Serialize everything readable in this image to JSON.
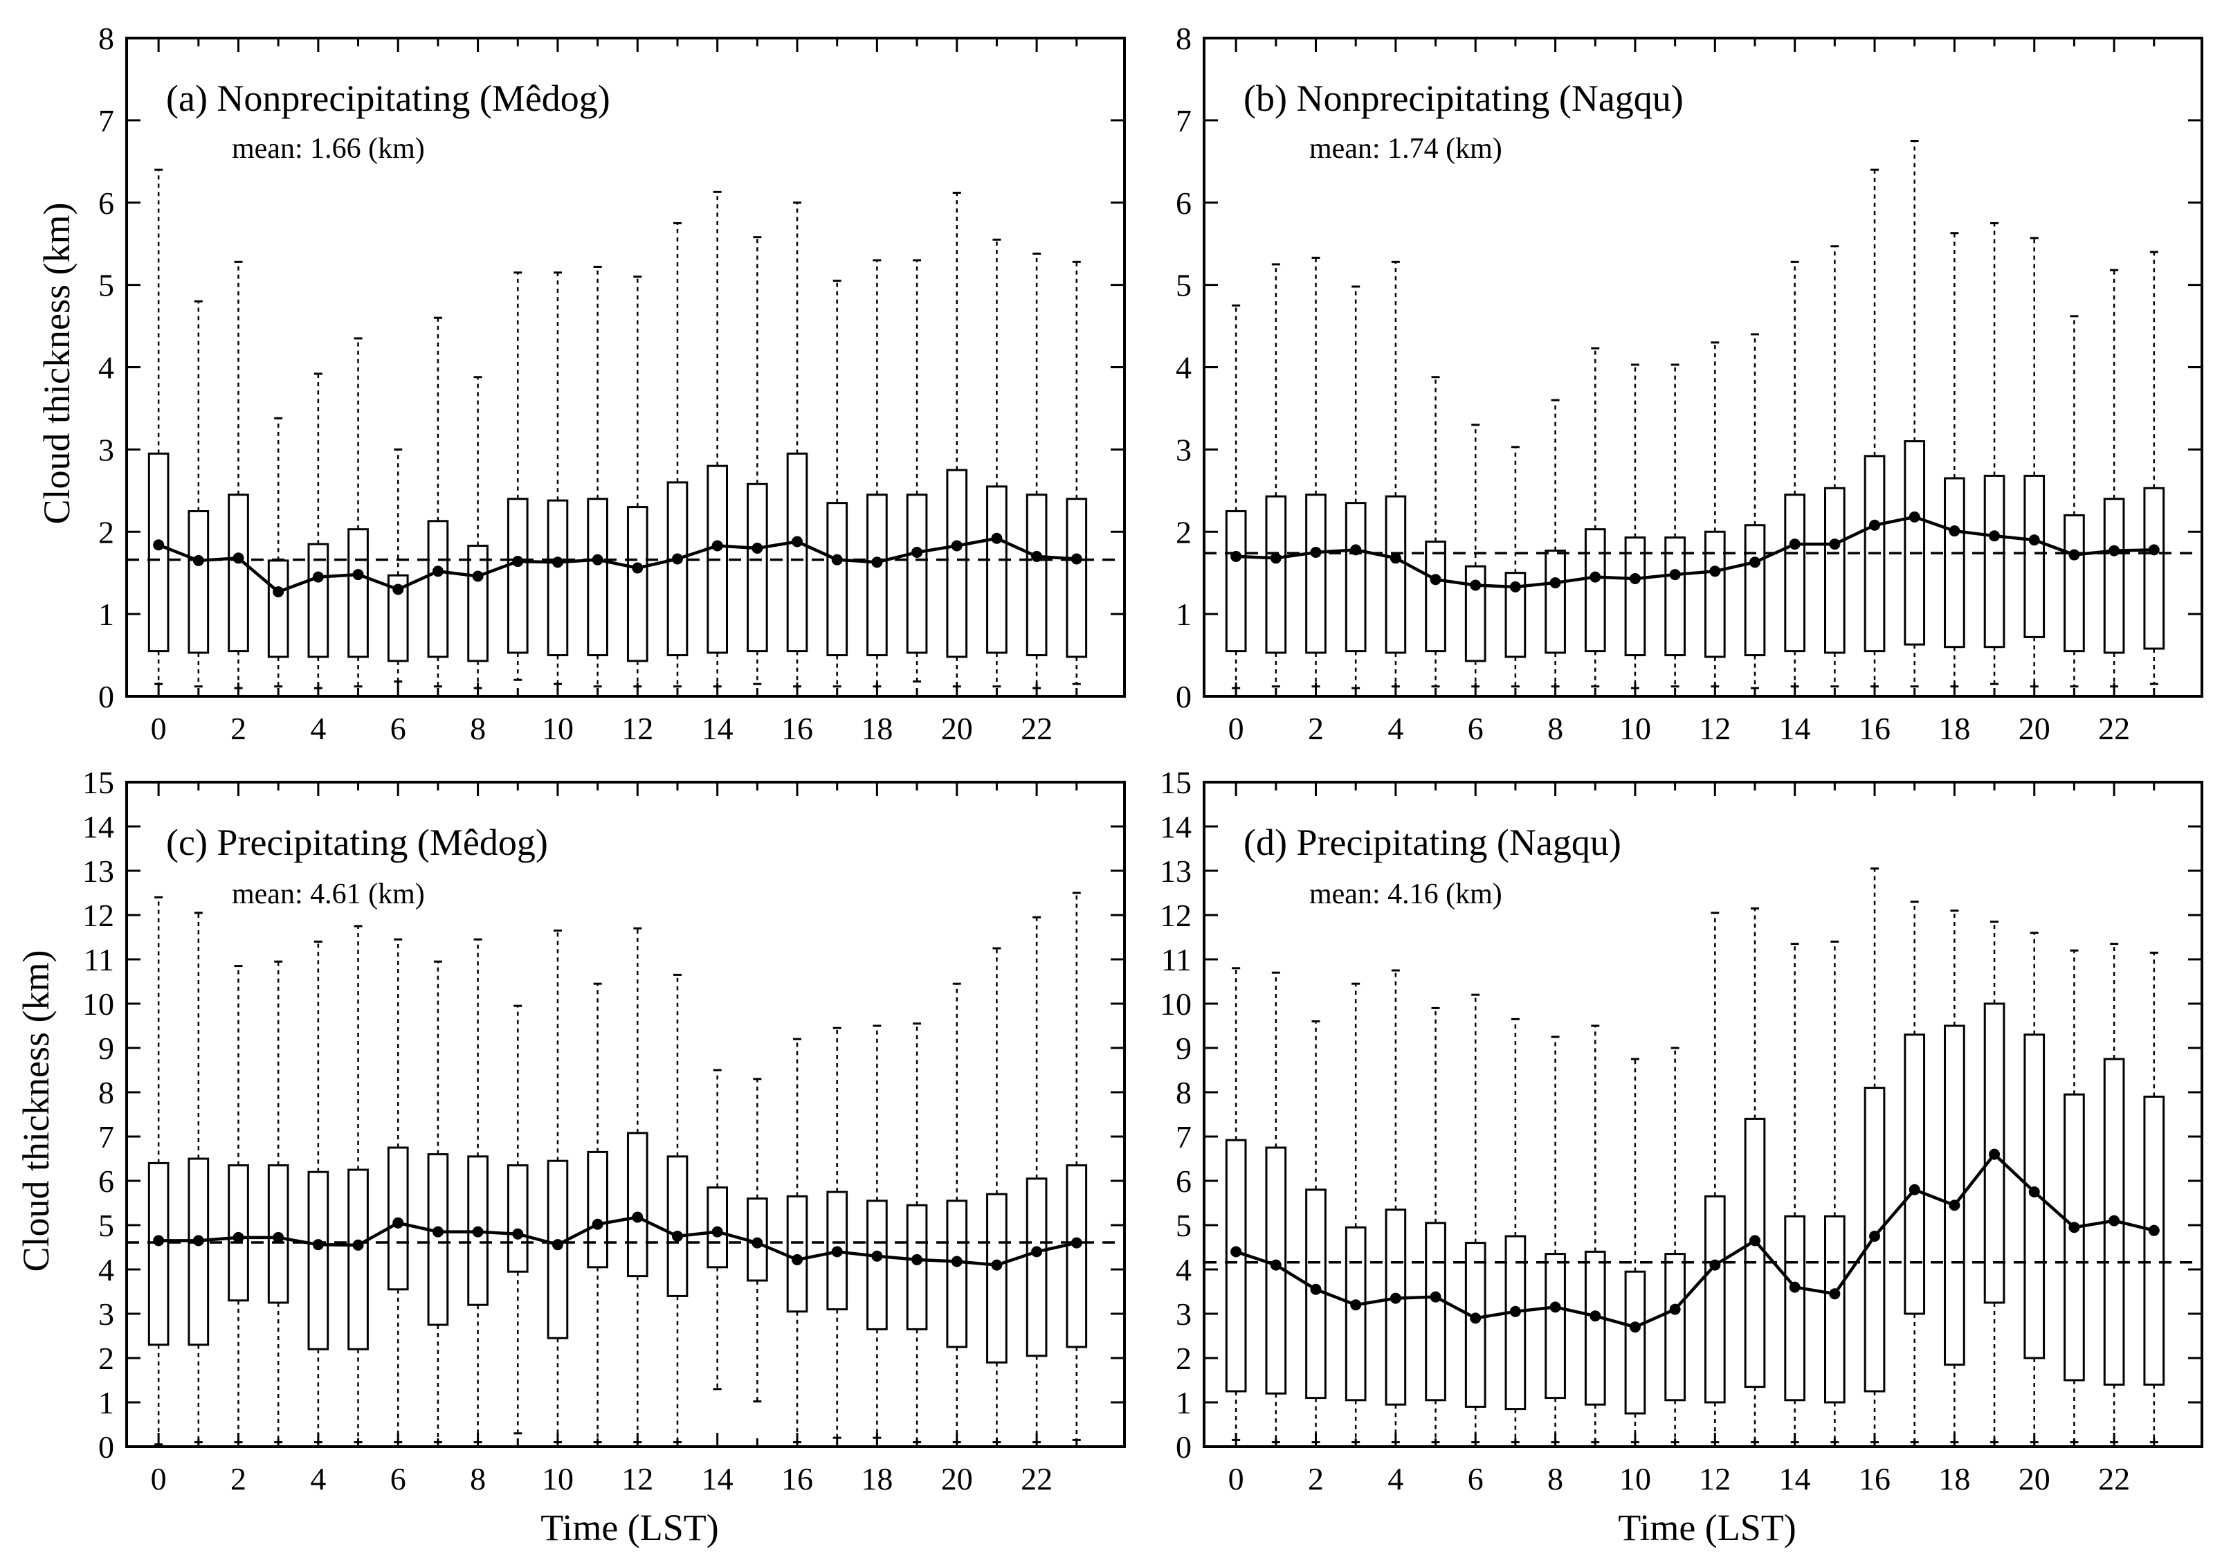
{
  "figure": {
    "x_label": "Time (LST)",
    "y_label": "Cloud thickness (km)"
  },
  "chart_data": [
    {
      "type": "box",
      "panel": "a",
      "title": "(a) Nonprecipitating (Mêdog)",
      "mean_label": "mean: 1.66 (km)",
      "overall_mean": 1.66,
      "xlabel": "",
      "ylabel": "Cloud thickness (km)",
      "ylim": [
        0,
        8
      ],
      "yticks": [
        0,
        1,
        2,
        3,
        4,
        5,
        6,
        7,
        8
      ],
      "xlim": [
        -0.8,
        24.2
      ],
      "xticks": [
        0,
        2,
        4,
        6,
        8,
        10,
        12,
        14,
        16,
        18,
        20,
        22
      ],
      "hours": [
        0,
        1,
        2,
        3,
        4,
        5,
        6,
        7,
        8,
        9,
        10,
        11,
        12,
        13,
        14,
        15,
        16,
        17,
        18,
        19,
        20,
        21,
        22,
        23
      ],
      "q1": [
        0.55,
        0.53,
        0.55,
        0.48,
        0.48,
        0.48,
        0.43,
        0.48,
        0.43,
        0.53,
        0.5,
        0.5,
        0.43,
        0.5,
        0.53,
        0.55,
        0.55,
        0.5,
        0.5,
        0.53,
        0.48,
        0.53,
        0.5,
        0.48
      ],
      "q3": [
        2.95,
        2.25,
        2.45,
        1.65,
        1.85,
        2.03,
        1.47,
        2.13,
        1.83,
        2.4,
        2.38,
        2.4,
        2.3,
        2.6,
        2.8,
        2.58,
        2.95,
        2.35,
        2.45,
        2.45,
        2.75,
        2.55,
        2.45,
        2.4
      ],
      "mean": [
        1.84,
        1.65,
        1.68,
        1.27,
        1.45,
        1.48,
        1.3,
        1.52,
        1.46,
        1.64,
        1.63,
        1.66,
        1.56,
        1.67,
        1.83,
        1.8,
        1.88,
        1.66,
        1.63,
        1.75,
        1.83,
        1.92,
        1.7,
        1.67
      ],
      "whisker_low": [
        0.15,
        0.12,
        0.1,
        0.12,
        0.1,
        0.12,
        0.18,
        0.12,
        0.1,
        0.2,
        0.15,
        0.12,
        0.12,
        0.12,
        0.12,
        0.15,
        0.12,
        0.12,
        0.12,
        0.18,
        0.12,
        0.12,
        0.1,
        0.15
      ],
      "whisker_high": [
        6.4,
        4.8,
        5.28,
        3.38,
        3.92,
        4.35,
        3.0,
        4.6,
        3.88,
        5.15,
        5.15,
        5.22,
        5.1,
        5.75,
        6.13,
        5.58,
        6.0,
        5.05,
        5.3,
        5.3,
        6.12,
        5.55,
        5.38,
        5.28
      ]
    },
    {
      "type": "box",
      "panel": "b",
      "title": "(b) Nonprecipitating (Nagqu)",
      "mean_label": "mean: 1.74 (km)",
      "overall_mean": 1.74,
      "xlabel": "",
      "ylabel": "",
      "ylim": [
        0,
        8
      ],
      "yticks": [
        0,
        1,
        2,
        3,
        4,
        5,
        6,
        7,
        8
      ],
      "xlim": [
        -0.8,
        24.2
      ],
      "xticks": [
        0,
        2,
        4,
        6,
        8,
        10,
        12,
        14,
        16,
        18,
        20,
        22
      ],
      "hours": [
        0,
        1,
        2,
        3,
        4,
        5,
        6,
        7,
        8,
        9,
        10,
        11,
        12,
        13,
        14,
        15,
        16,
        17,
        18,
        19,
        20,
        21,
        22,
        23
      ],
      "q1": [
        0.55,
        0.53,
        0.53,
        0.55,
        0.53,
        0.55,
        0.43,
        0.48,
        0.53,
        0.55,
        0.5,
        0.5,
        0.48,
        0.5,
        0.55,
        0.53,
        0.55,
        0.63,
        0.6,
        0.6,
        0.72,
        0.55,
        0.53,
        0.58
      ],
      "q3": [
        2.25,
        2.43,
        2.45,
        2.35,
        2.43,
        1.88,
        1.58,
        1.5,
        1.77,
        2.03,
        1.93,
        1.93,
        2.0,
        2.08,
        2.45,
        2.53,
        2.92,
        3.1,
        2.65,
        2.68,
        2.68,
        2.2,
        2.4,
        2.53
      ],
      "mean": [
        1.7,
        1.68,
        1.75,
        1.78,
        1.68,
        1.42,
        1.35,
        1.33,
        1.38,
        1.45,
        1.43,
        1.48,
        1.52,
        1.63,
        1.85,
        1.85,
        2.08,
        2.18,
        2.01,
        1.95,
        1.9,
        1.72,
        1.77,
        1.78
      ],
      "whisker_low": [
        0.1,
        0.12,
        0.12,
        0.1,
        0.12,
        0.12,
        0.12,
        0.12,
        0.12,
        0.12,
        0.1,
        0.12,
        0.12,
        0.1,
        0.12,
        0.12,
        0.12,
        0.12,
        0.12,
        0.15,
        0.12,
        0.12,
        0.12,
        0.15
      ],
      "whisker_high": [
        4.75,
        5.25,
        5.33,
        4.98,
        5.28,
        3.88,
        3.3,
        3.03,
        3.6,
        4.23,
        4.03,
        4.03,
        4.3,
        4.4,
        5.28,
        5.47,
        6.4,
        6.75,
        5.63,
        5.75,
        5.57,
        4.62,
        5.18,
        5.4
      ]
    },
    {
      "type": "box",
      "panel": "c",
      "title": "(c) Precipitating (Mêdog)",
      "mean_label": "mean: 4.61 (km)",
      "overall_mean": 4.61,
      "xlabel": "Time (LST)",
      "ylabel": "Cloud thickness (km)",
      "ylim": [
        0,
        15
      ],
      "yticks": [
        0,
        1,
        2,
        3,
        4,
        5,
        6,
        7,
        8,
        9,
        10,
        11,
        12,
        13,
        14,
        15
      ],
      "xlim": [
        -0.8,
        24.2
      ],
      "xticks": [
        0,
        2,
        4,
        6,
        8,
        10,
        12,
        14,
        16,
        18,
        20,
        22
      ],
      "hours": [
        0,
        1,
        2,
        3,
        4,
        5,
        6,
        7,
        8,
        9,
        10,
        11,
        12,
        13,
        14,
        15,
        16,
        17,
        18,
        19,
        20,
        21,
        22,
        23
      ],
      "q1": [
        2.3,
        2.3,
        3.3,
        3.25,
        2.2,
        2.2,
        3.55,
        2.75,
        3.2,
        3.95,
        2.45,
        4.05,
        3.85,
        3.4,
        4.05,
        3.75,
        3.05,
        3.1,
        2.65,
        2.65,
        2.25,
        1.9,
        2.05,
        2.25
      ],
      "q3": [
        6.4,
        6.5,
        6.35,
        6.35,
        6.2,
        6.25,
        6.75,
        6.6,
        6.55,
        6.35,
        6.45,
        6.65,
        7.08,
        6.55,
        5.85,
        5.6,
        5.65,
        5.75,
        5.55,
        5.45,
        5.55,
        5.7,
        6.05,
        6.35
      ],
      "mean": [
        4.65,
        4.65,
        4.72,
        4.72,
        4.56,
        4.55,
        5.05,
        4.85,
        4.85,
        4.8,
        4.56,
        5.02,
        5.18,
        4.75,
        4.85,
        4.6,
        4.22,
        4.4,
        4.3,
        4.22,
        4.18,
        4.1,
        4.4,
        4.6
      ],
      "whisker_low": [
        0.05,
        0.1,
        0.1,
        0.1,
        0.1,
        0.1,
        0.1,
        0.1,
        0.1,
        0.3,
        0.1,
        0.1,
        0.1,
        0.1,
        1.3,
        1.02,
        0.1,
        0.2,
        0.2,
        0.1,
        0.1,
        0.1,
        0.1,
        0.15
      ],
      "whisker_high": [
        12.4,
        12.05,
        10.85,
        10.95,
        11.4,
        11.75,
        11.45,
        10.95,
        11.45,
        9.95,
        11.65,
        10.45,
        11.7,
        10.65,
        8.5,
        8.3,
        9.2,
        9.45,
        9.5,
        9.55,
        10.45,
        11.25,
        11.95,
        12.5
      ]
    },
    {
      "type": "box",
      "panel": "d",
      "title": "(d) Precipitating (Nagqu)",
      "mean_label": "mean: 4.16 (km)",
      "overall_mean": 4.16,
      "xlabel": "Time (LST)",
      "ylabel": "",
      "ylim": [
        0,
        15
      ],
      "yticks": [
        0,
        1,
        2,
        3,
        4,
        5,
        6,
        7,
        8,
        9,
        10,
        11,
        12,
        13,
        14,
        15
      ],
      "xlim": [
        -0.8,
        24.2
      ],
      "xticks": [
        0,
        2,
        4,
        6,
        8,
        10,
        12,
        14,
        16,
        18,
        20,
        22
      ],
      "hours": [
        0,
        1,
        2,
        3,
        4,
        5,
        6,
        7,
        8,
        9,
        10,
        11,
        12,
        13,
        14,
        15,
        16,
        17,
        18,
        19,
        20,
        21,
        22,
        23
      ],
      "q1": [
        1.25,
        1.2,
        1.1,
        1.05,
        0.95,
        1.05,
        0.9,
        0.85,
        1.1,
        0.95,
        0.75,
        1.05,
        1.0,
        1.35,
        1.05,
        1.0,
        1.25,
        3.0,
        1.85,
        3.25,
        2.0,
        1.5,
        1.4,
        1.4
      ],
      "q3": [
        6.92,
        6.75,
        5.8,
        4.95,
        5.35,
        5.05,
        4.6,
        4.75,
        4.35,
        4.4,
        3.95,
        4.35,
        5.65,
        7.4,
        5.2,
        5.2,
        8.1,
        9.3,
        9.5,
        10.0,
        9.3,
        7.95,
        8.75,
        7.9
      ],
      "mean": [
        4.4,
        4.1,
        3.55,
        3.2,
        3.35,
        3.38,
        2.9,
        3.05,
        3.15,
        2.95,
        2.7,
        3.1,
        4.1,
        4.65,
        3.6,
        3.45,
        4.75,
        5.8,
        5.45,
        6.6,
        5.75,
        4.95,
        5.1,
        4.88
      ],
      "whisker_low": [
        0.15,
        0.1,
        0.1,
        0.1,
        0.1,
        0.1,
        0.1,
        0.1,
        0.1,
        0.1,
        0.1,
        0.1,
        0.1,
        0.1,
        0.1,
        0.1,
        0.1,
        0.1,
        0.1,
        0.1,
        0.1,
        0.1,
        0.1,
        0.1
      ],
      "whisker_high": [
        10.8,
        10.7,
        9.6,
        10.45,
        10.75,
        9.9,
        10.2,
        9.65,
        9.25,
        9.5,
        8.75,
        9.0,
        12.05,
        12.15,
        11.35,
        11.4,
        13.05,
        12.3,
        12.1,
        11.85,
        11.6,
        11.2,
        11.35,
        11.15
      ]
    }
  ]
}
